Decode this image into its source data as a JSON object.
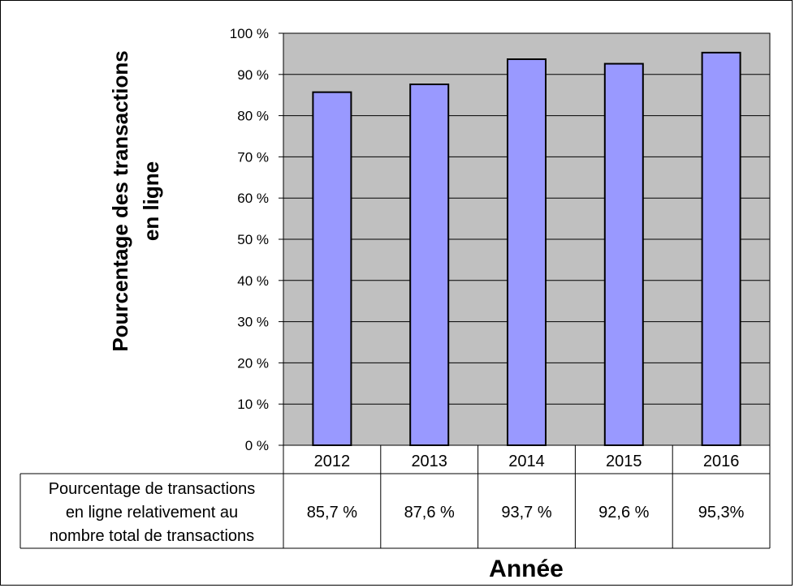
{
  "colors": {
    "background": "#ffffff",
    "plot_background": "#c0c0c0",
    "bar_fill": "#9999ff",
    "bar_stroke": "#000000",
    "gridline": "#000000",
    "frame": "#000000"
  },
  "chart_data": {
    "type": "bar",
    "ylabel_lines": [
      "Pourcentage des transactions",
      "en ligne"
    ],
    "xlabel": "Année",
    "categories": [
      "2012",
      "2013",
      "2014",
      "2015",
      "2016"
    ],
    "values": [
      85.7,
      87.6,
      93.7,
      92.6,
      95.3
    ],
    "ylim": [
      0,
      100
    ],
    "ytick_step": 10,
    "ytick_labels": [
      "0 %",
      "10 %",
      "20 %",
      "30 %",
      "40 %",
      "50 %",
      "60 %",
      "70 %",
      "80 %",
      "90 %",
      "100 %"
    ],
    "grid": true,
    "legend": "none",
    "data_table": {
      "row_label_lines": [
        "Pourcentage de transactions",
        "en ligne relativement au",
        "nombre total de transactions"
      ],
      "values": [
        "85,7 %",
        "87,6 %",
        "93,7 %",
        "92,6 %",
        "95,3%"
      ]
    }
  }
}
